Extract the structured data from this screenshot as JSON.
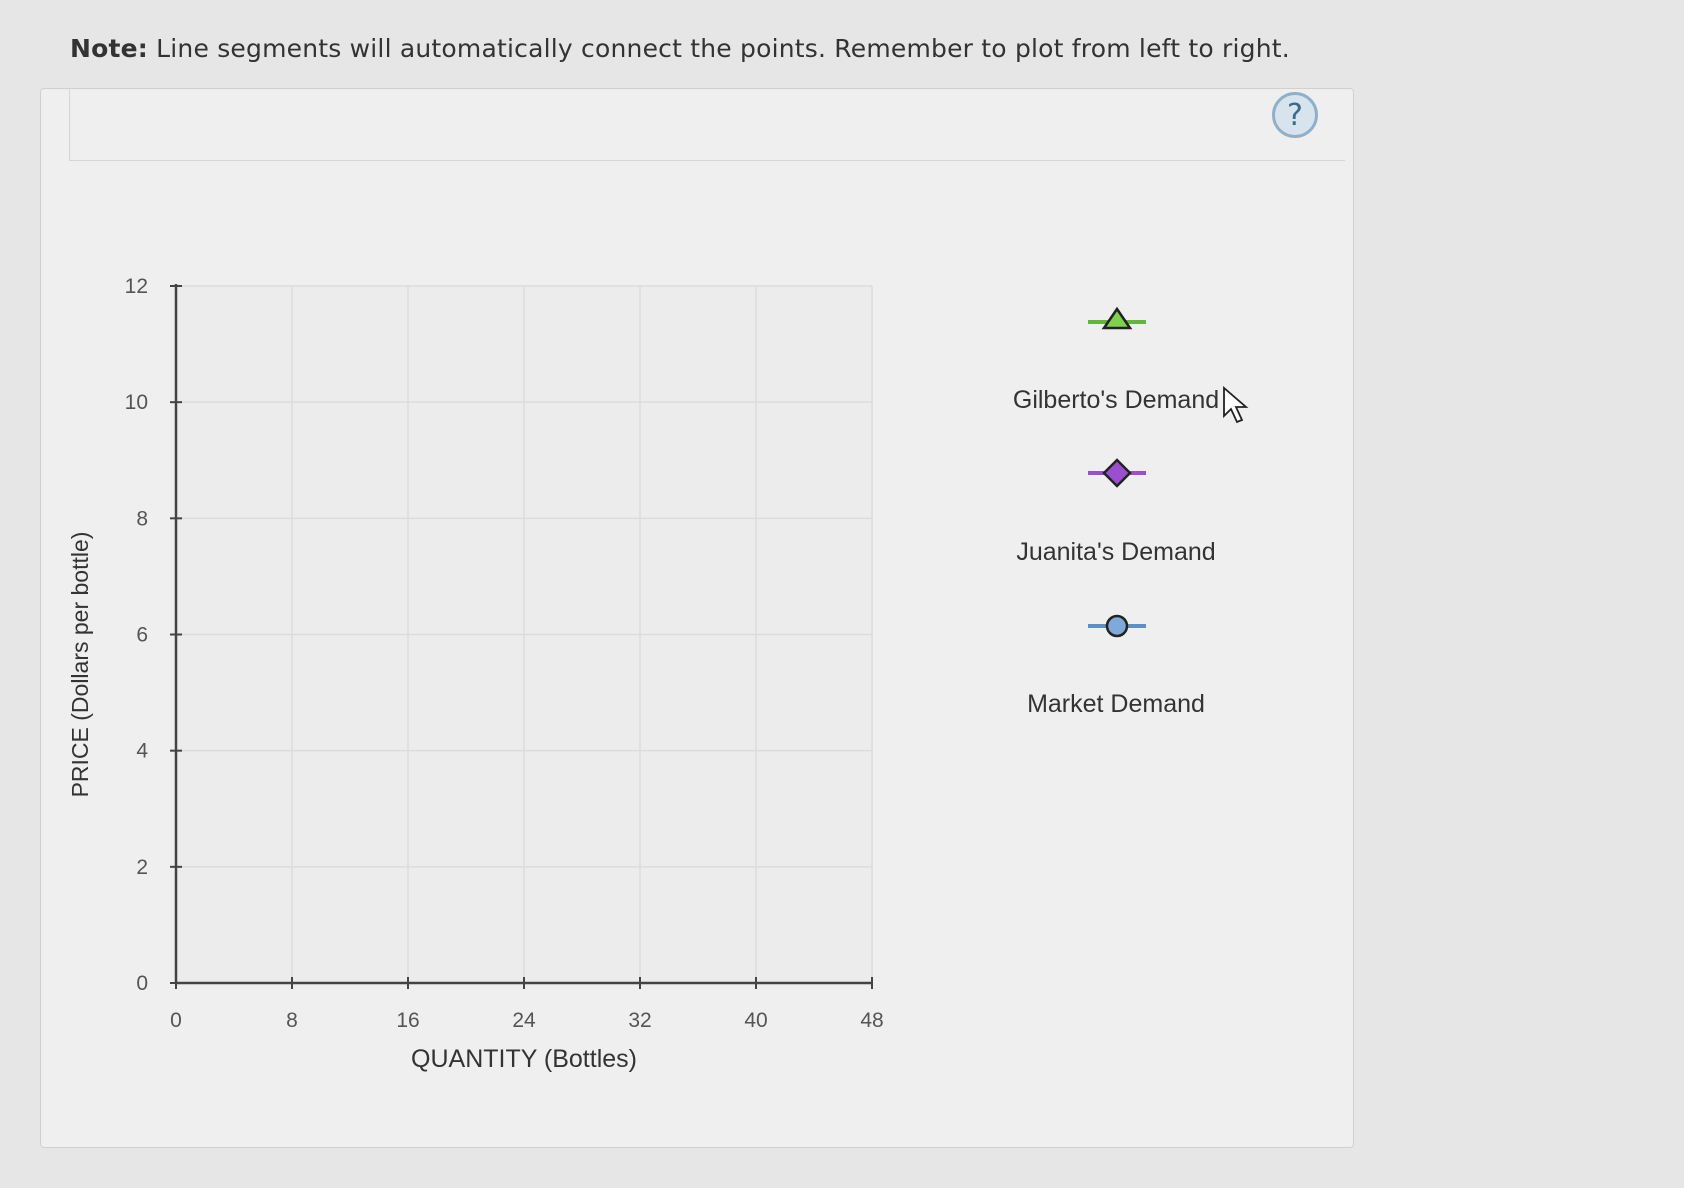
{
  "note": {
    "prefix": "Note:",
    "text": " Line segments will automatically connect the points. Remember to plot from left to right."
  },
  "help_button": {
    "label": "?"
  },
  "legend": [
    {
      "label": "Gilberto's Demand",
      "marker": "triangle",
      "color": "#5fb83a"
    },
    {
      "label": "Juanita's Demand",
      "marker": "diamond",
      "color": "#9a4fd0"
    },
    {
      "label": "Market Demand",
      "marker": "circle",
      "color": "#5b8fc7"
    }
  ],
  "chart_data": {
    "type": "line",
    "xlabel": "QUANTITY (Bottles)",
    "ylabel": "PRICE (Dollars per bottle)",
    "xlim": [
      0,
      48
    ],
    "ylim": [
      0,
      12
    ],
    "xticks": [
      0,
      8,
      16,
      24,
      32,
      40,
      48
    ],
    "yticks": [
      0,
      2,
      4,
      6,
      8,
      10,
      12
    ],
    "grid": true,
    "series": []
  }
}
